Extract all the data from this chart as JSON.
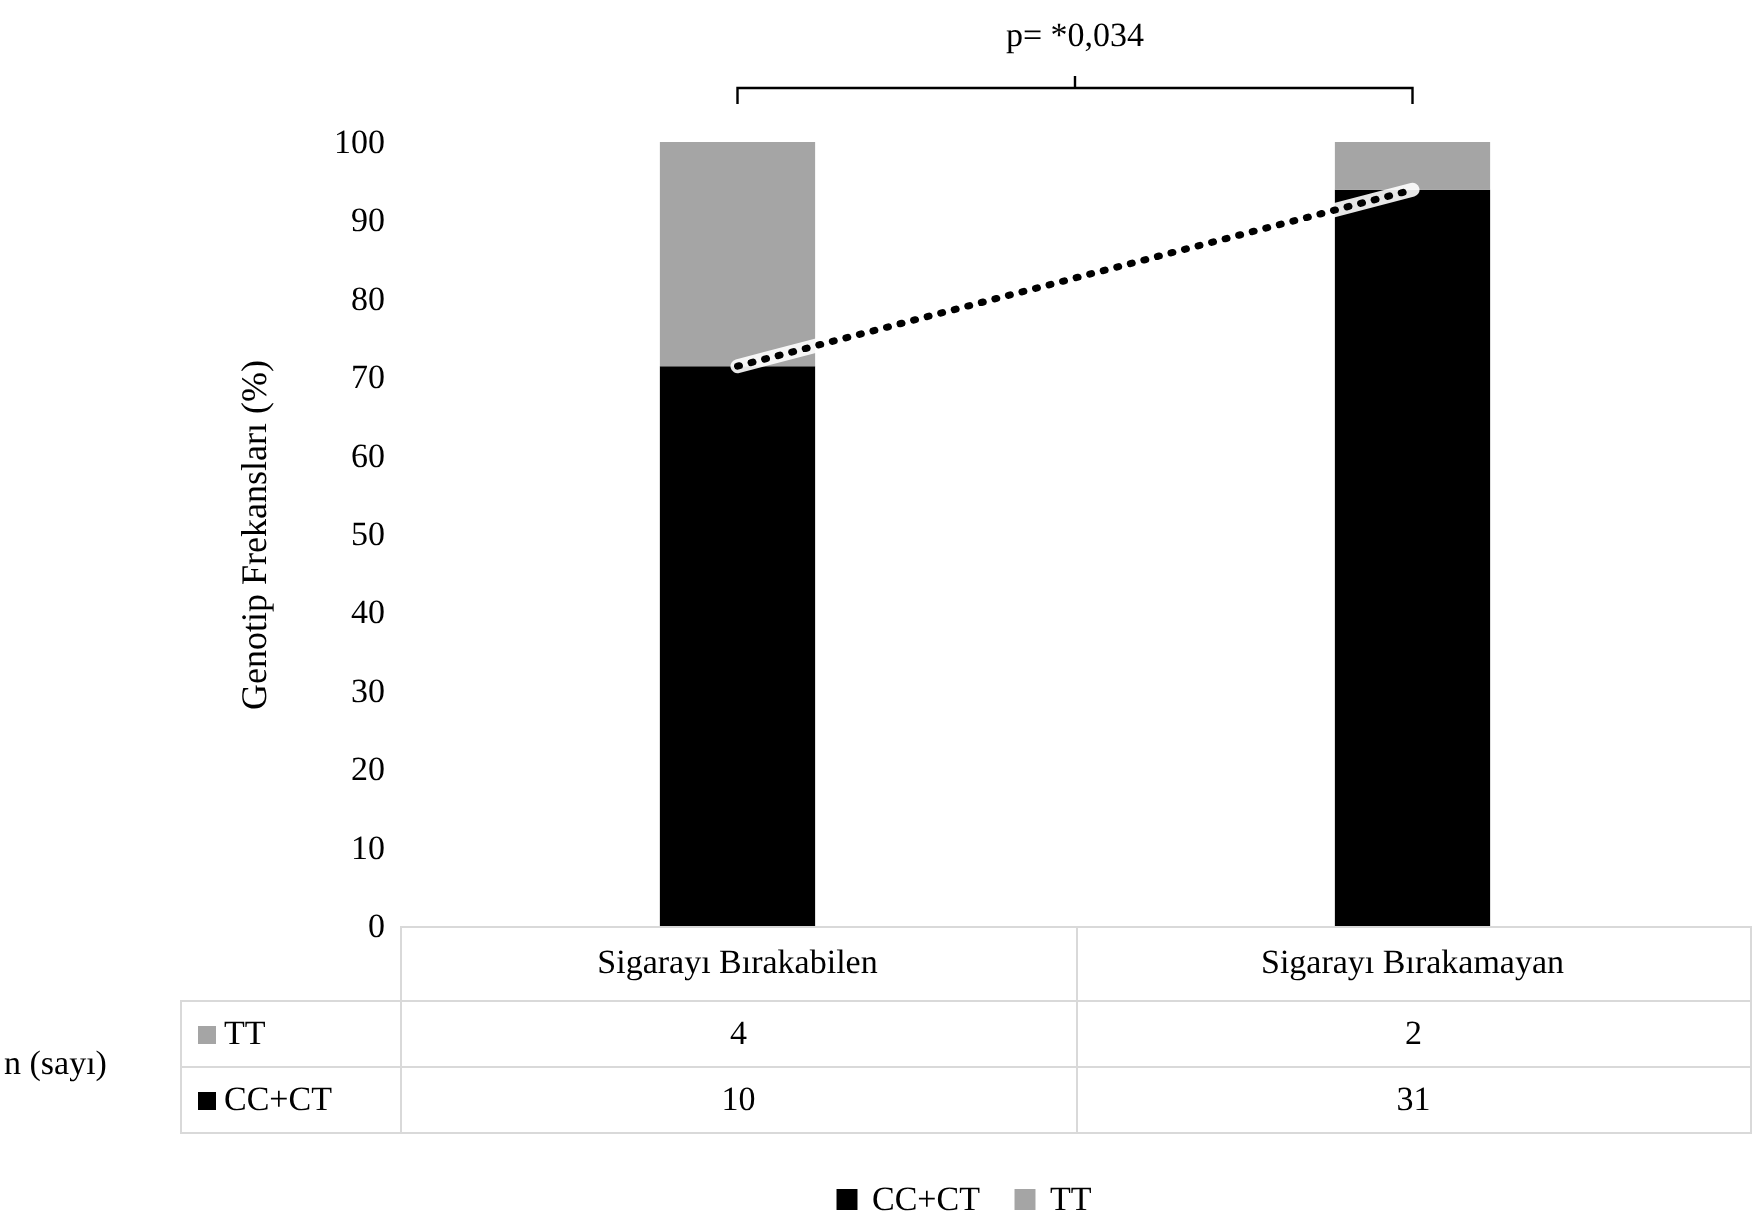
{
  "chart_data": {
    "type": "bar",
    "stacked": true,
    "ylabel": "Genotip Frekansları (%)",
    "categories": [
      "Sigarayı Bırakabilen",
      "Sigarayı Bırakamayan"
    ],
    "series": [
      {
        "name": "CC+CT",
        "color": "#000000",
        "values": [
          71.4,
          93.9
        ]
      },
      {
        "name": "TT",
        "color": "#a5a5a5",
        "values": [
          28.6,
          6.1
        ]
      },
      {
        "type": "line",
        "color": "#000000",
        "line_style": "dotted",
        "values": [
          71.4,
          93.9
        ]
      }
    ],
    "ylim": [
      0,
      100
    ],
    "yticks": [
      0,
      10,
      20,
      30,
      40,
      50,
      60,
      70,
      80,
      90,
      100
    ],
    "legend": "bottom",
    "annotations": [
      "p= *0,034",
      "n (sayı)",
      "10",
      "31",
      "4",
      "2"
    ]
  }
}
